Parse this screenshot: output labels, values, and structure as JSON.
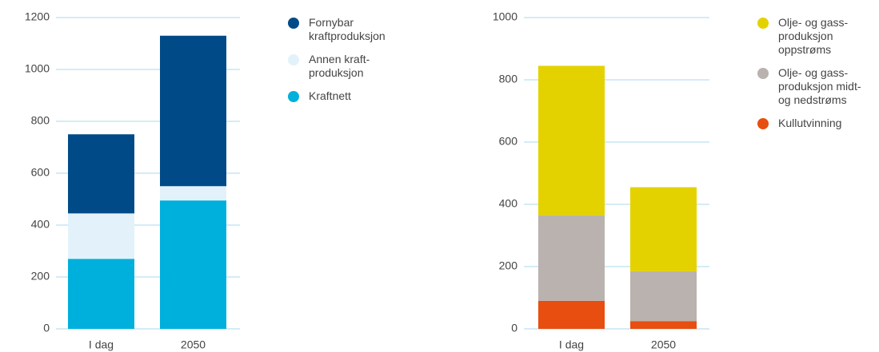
{
  "chart_data": [
    {
      "type": "bar",
      "categories": [
        "I dag",
        "2050"
      ],
      "series": [
        {
          "name": "Fornybar kraftproduksjon",
          "color": "#004b87",
          "values": [
            305,
            580
          ]
        },
        {
          "name": "Annen kraft-produksjon",
          "color": "#e3f2fa",
          "values": [
            175,
            55
          ]
        },
        {
          "name": "Kraftnett",
          "color": "#00b0dc",
          "values": [
            270,
            495
          ]
        }
      ],
      "ylim": [
        0,
        1200
      ],
      "yticks": [
        0,
        200,
        400,
        600,
        800,
        1000,
        1200
      ],
      "grid": true,
      "stacked": true
    },
    {
      "type": "bar",
      "categories": [
        "I dag",
        "2050"
      ],
      "series": [
        {
          "name": "Olje- og gass-produksjon oppstrøms",
          "color": "#e3d200",
          "values": [
            480,
            270
          ]
        },
        {
          "name": "Olje- og gass-produksjon midt- og nedstrøms",
          "color": "#b9b2ae",
          "values": [
            275,
            160
          ]
        },
        {
          "name": "Kullutvinning",
          "color": "#e84e10",
          "values": [
            90,
            25
          ]
        }
      ],
      "ylim": [
        0,
        1000
      ],
      "yticks": [
        0,
        200,
        400,
        600,
        800,
        1000
      ],
      "grid": true,
      "stacked": true
    }
  ]
}
